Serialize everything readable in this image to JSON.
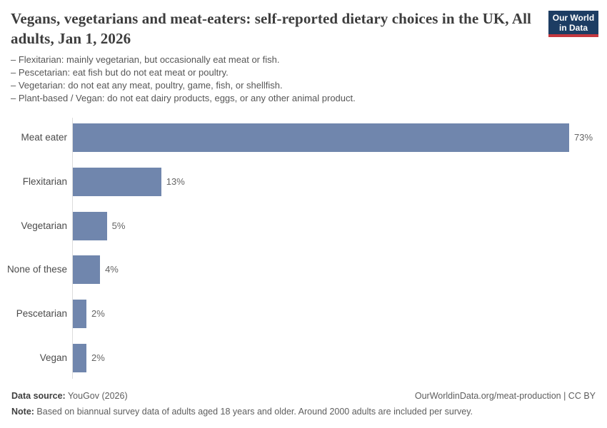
{
  "header": {
    "title": "Vegans, vegetarians and meat-eaters: self-reported dietary choices in the UK, All adults, Jan 1, 2026",
    "subtitle_lines": [
      "– Flexitarian: mainly vegetarian, but occasionally eat meat or fish.",
      "– Pescetarian: eat fish but do not eat meat or poultry.",
      "– Vegetarian: do not eat any meat, poultry, game, fish, or shellfish.",
      "– Plant-based / Vegan: do not eat dairy products, eggs, or any other animal product."
    ],
    "logo": {
      "line1": "Our World",
      "line2": "in Data",
      "bg_color": "#1d3d63",
      "accent_color": "#c5383f",
      "text_color": "#ffffff"
    }
  },
  "chart_data": {
    "type": "bar",
    "orientation": "horizontal",
    "title": "Vegans, vegetarians and meat-eaters: self-reported dietary choices in the UK, All adults, Jan 1, 2026",
    "categories": [
      "Meat eater",
      "Flexitarian",
      "Vegetarian",
      "None of these",
      "Pescetarian",
      "Vegan"
    ],
    "values": [
      73,
      13,
      5,
      4,
      2,
      2
    ],
    "value_labels": [
      "73%",
      "13%",
      "5%",
      "4%",
      "2%",
      "2%"
    ],
    "unit": "%",
    "xlim": [
      0,
      73
    ],
    "grid": false,
    "legend": false,
    "bar_color": "#7086ad",
    "axis_line_color": "#dcdcdc"
  },
  "footer": {
    "source_label": "Data source:",
    "source_value": " YouGov (2026)",
    "link": "OurWorldinData.org/meat-production | CC BY",
    "note_label": "Note:",
    "note_value": " Based on biannual survey data of adults aged 18 years and older. Around 2000 adults are included per survey."
  }
}
